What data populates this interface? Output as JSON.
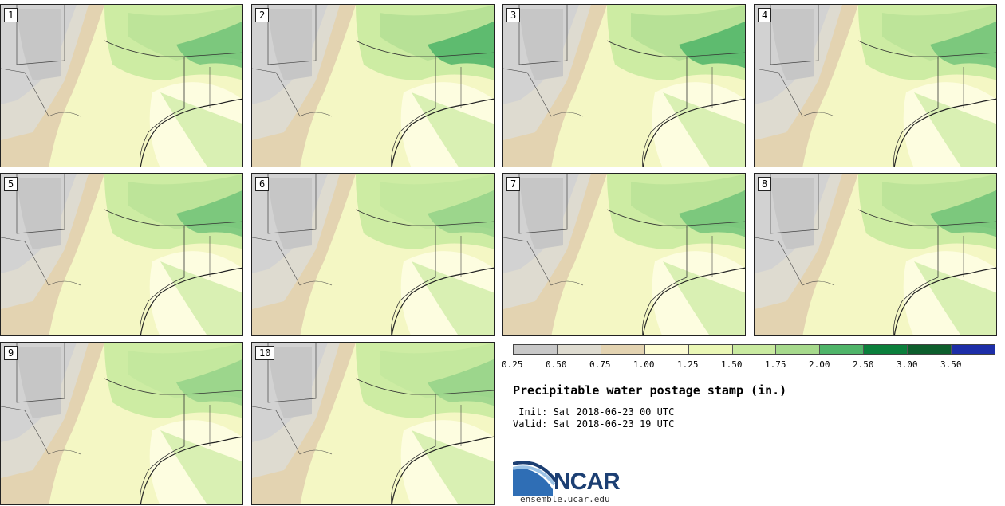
{
  "stamps": [
    {
      "label": "1",
      "north": "mid"
    },
    {
      "label": "2",
      "north": "high"
    },
    {
      "label": "3",
      "north": "high"
    },
    {
      "label": "4",
      "north": "mid"
    },
    {
      "label": "5",
      "north": "mid"
    },
    {
      "label": "6",
      "north": "low"
    },
    {
      "label": "7",
      "north": "mid"
    },
    {
      "label": "8",
      "north": "mid"
    },
    {
      "label": "9",
      "north": "low"
    },
    {
      "label": "10",
      "north": "low"
    }
  ],
  "colorbar": {
    "ticks": [
      "0.25",
      "0.50",
      "0.75",
      "1.00",
      "1.25",
      "1.50",
      "1.75",
      "2.00",
      "2.50",
      "3.00",
      "3.50"
    ],
    "colors": [
      "#d9d9d9",
      "#c8c8c8",
      "#dedbd0",
      "#e3d3b1",
      "#fcfcd4",
      "#eaf7b6",
      "#c9eaa0",
      "#a6d98c",
      "#4fb469",
      "#0b7f3c",
      "#0d5e2d",
      "#1d2ea8"
    ]
  },
  "title": "Precipitable water postage stamp (in.)",
  "init": " Init: Sat 2018-06-23 00 UTC",
  "valid": "Valid: Sat 2018-06-23 19 UTC",
  "logo": {
    "text": "NCAR",
    "url": "ensemble.ucar.edu"
  }
}
